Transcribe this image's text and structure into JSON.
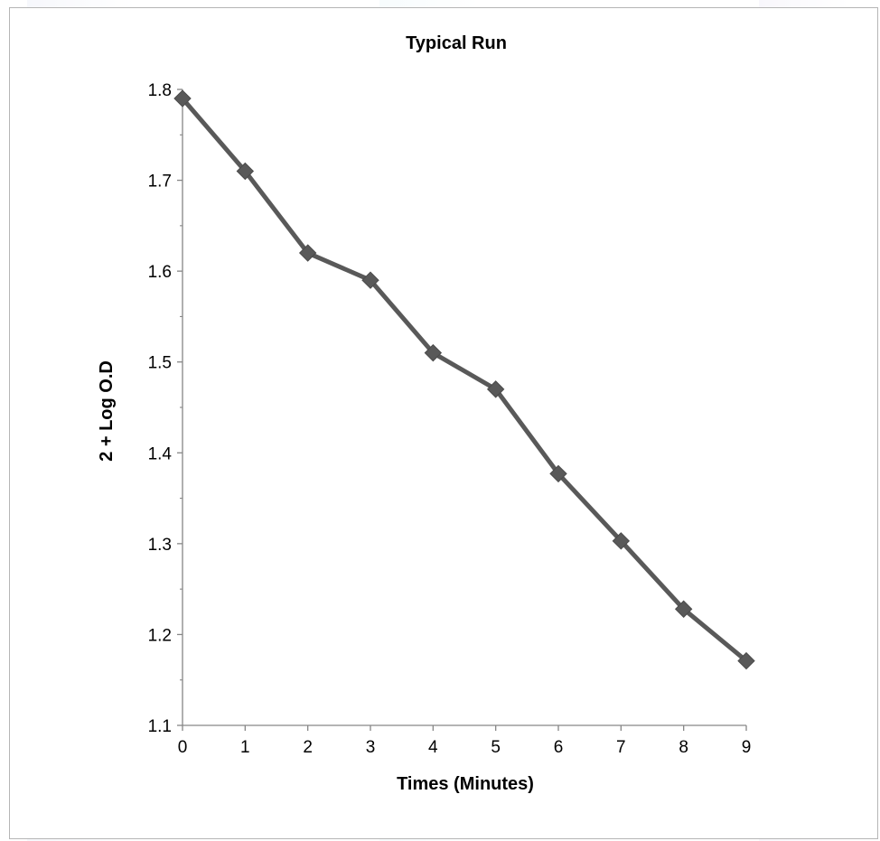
{
  "chart_data": {
    "type": "line",
    "title": "Typical Run",
    "xlabel": "Times (Minutes)",
    "ylabel": "2 + Log O.D",
    "x": [
      0,
      1,
      2,
      3,
      4,
      5,
      6,
      7,
      8,
      9
    ],
    "series": [
      {
        "values": [
          1.79,
          1.71,
          1.62,
          1.59,
          1.51,
          1.47,
          1.377,
          1.303,
          1.228,
          1.171
        ]
      }
    ],
    "xlim": [
      0,
      9
    ],
    "ylim": [
      1.1,
      1.8
    ],
    "yticks": [
      "1.1",
      "1.2",
      "1.3",
      "1.4",
      "1.5",
      "1.6",
      "1.7",
      "1.8"
    ],
    "xticks": [
      "0",
      "1",
      "2",
      "3",
      "4",
      "5",
      "6",
      "7",
      "8",
      "9"
    ],
    "grid": false,
    "marker": "diamond",
    "line_color": "#595959"
  }
}
